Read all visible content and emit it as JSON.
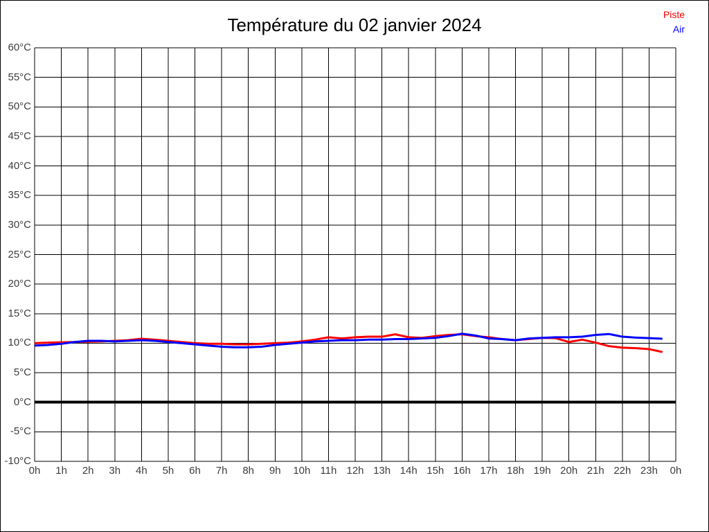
{
  "title": "Température du 02 janvier 2024",
  "legend": {
    "piste_label": "Piste",
    "air_label": "Air"
  },
  "colors": {
    "piste": "#ff0000",
    "air": "#0000ff",
    "grid": "#000000",
    "zero_line": "#000000",
    "tick_label": "#3d3d3d",
    "title": "#000000",
    "background": "#ffffff",
    "border": "#000000"
  },
  "chart_data": {
    "type": "line",
    "title": "Température du 02 janvier 2024",
    "xlabel": "",
    "ylabel": "",
    "x_unit": "hours",
    "y_unit": "°C",
    "x_range": [
      0,
      24
    ],
    "ylim": [
      -10,
      60
    ],
    "y_tick_step": 5,
    "grid": true,
    "zero_line_bold": true,
    "legend_position": "top-right",
    "xlabels": [
      "0h",
      "1h",
      "2h",
      "3h",
      "4h",
      "5h",
      "6h",
      "7h",
      "8h",
      "9h",
      "10h",
      "11h",
      "12h",
      "13h",
      "14h",
      "15h",
      "16h",
      "17h",
      "18h",
      "19h",
      "20h",
      "21h",
      "22h",
      "23h",
      "0h"
    ],
    "ylabels": [
      "60°C",
      "55°C",
      "50°C",
      "45°C",
      "40°C",
      "35°C",
      "30°C",
      "25°C",
      "20°C",
      "15°C",
      "10°C",
      "5°C",
      "0°C",
      "-5°C",
      "-10°C"
    ],
    "x": [
      0,
      0.5,
      1,
      1.5,
      2,
      2.5,
      3,
      3.5,
      4,
      4.5,
      5,
      5.5,
      6,
      6.5,
      7,
      7.5,
      8,
      8.5,
      9,
      9.5,
      10,
      10.5,
      11,
      11.5,
      12,
      12.5,
      13,
      13.5,
      14,
      14.5,
      15,
      15.5,
      16,
      16.5,
      17,
      17.5,
      18,
      18.5,
      19,
      19.5,
      20,
      20.5,
      21,
      21.5,
      22,
      22.5,
      23,
      23.5
    ],
    "series": [
      {
        "name": "Piste",
        "color": "#ff0000",
        "values": [
          10.0,
          10.1,
          10.15,
          10.2,
          10.25,
          10.3,
          10.4,
          10.5,
          10.75,
          10.6,
          10.4,
          10.2,
          10.0,
          9.9,
          9.9,
          9.8,
          9.8,
          9.9,
          10.0,
          10.1,
          10.3,
          10.6,
          11.0,
          10.8,
          11.0,
          11.1,
          11.1,
          11.5,
          11.0,
          10.9,
          11.2,
          11.4,
          11.5,
          11.2,
          11.0,
          10.7,
          10.5,
          10.7,
          10.9,
          10.85,
          10.2,
          10.6,
          10.1,
          9.5,
          9.25,
          9.15,
          9.0,
          8.5
        ]
      },
      {
        "name": "Air",
        "color": "#0000ff",
        "values": [
          9.6,
          9.7,
          9.9,
          10.2,
          10.4,
          10.4,
          10.3,
          10.4,
          10.5,
          10.4,
          10.2,
          10.0,
          9.8,
          9.6,
          9.4,
          9.3,
          9.3,
          9.4,
          9.7,
          9.9,
          10.1,
          10.3,
          10.4,
          10.5,
          10.5,
          10.6,
          10.6,
          10.7,
          10.7,
          10.8,
          10.9,
          11.2,
          11.6,
          11.3,
          10.8,
          10.7,
          10.5,
          10.8,
          10.9,
          11.0,
          11.0,
          11.1,
          11.4,
          11.55,
          11.1,
          10.95,
          10.85,
          10.75
        ]
      }
    ]
  }
}
